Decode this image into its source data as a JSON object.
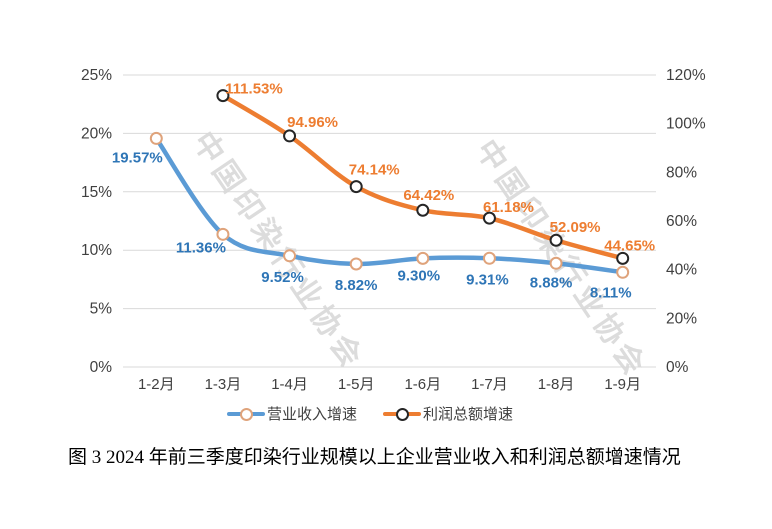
{
  "figure": {
    "caption": "图 3 2024 年前三季度印染行业规模以上企业营业收入和利润总额增速情况",
    "watermark_text": "中国印染行业协会"
  },
  "chart_data": {
    "type": "line",
    "title": "",
    "categories": [
      "1-2月",
      "1-3月",
      "1-4月",
      "1-5月",
      "1-6月",
      "1-7月",
      "1-8月",
      "1-9月"
    ],
    "series": [
      {
        "name": "营业收入增速",
        "axis": "left",
        "values": [
          19.57,
          11.36,
          9.52,
          8.82,
          9.3,
          9.31,
          8.88,
          8.11
        ],
        "point_labels": [
          "19.57%",
          "11.36%",
          "9.52%",
          "8.82%",
          "9.30%",
          "9.31%",
          "8.88%",
          "8.11%"
        ],
        "line_color": "#5B9BD5",
        "label_color": "#2E75B6",
        "marker_fill": "#FFFFFF",
        "marker_stroke": "#DFA37B"
      },
      {
        "name": "利润总额增速",
        "axis": "right",
        "values": [
          null,
          111.53,
          94.96,
          74.14,
          64.42,
          61.18,
          52.09,
          44.65
        ],
        "point_labels": [
          "",
          "111.53%",
          "94.96%",
          "74.14%",
          "64.42%",
          "61.18%",
          "52.09%",
          "44.65%"
        ],
        "line_color": "#ED7D31",
        "label_color": "#ED7D31",
        "marker_fill": "#FFFFFF",
        "marker_stroke": "#262626"
      }
    ],
    "left_axis": {
      "min": 0,
      "max": 25,
      "tick_step": 5,
      "tick_labels_top_to_bottom": [
        "25%",
        "20%",
        "15%",
        "10%",
        "5%",
        "0%"
      ]
    },
    "right_axis": {
      "min": 0,
      "max": 120,
      "tick_step": 20,
      "tick_labels_top_to_bottom": [
        "120%",
        "100%",
        "80%",
        "60%",
        "40%",
        "20%",
        "0%"
      ]
    },
    "grid": "horizontal-only",
    "legend_position": "bottom",
    "colors": {
      "gridline": "#D9D9D9",
      "axis_text": "#404040",
      "watermark": "#DCDCDC"
    }
  }
}
